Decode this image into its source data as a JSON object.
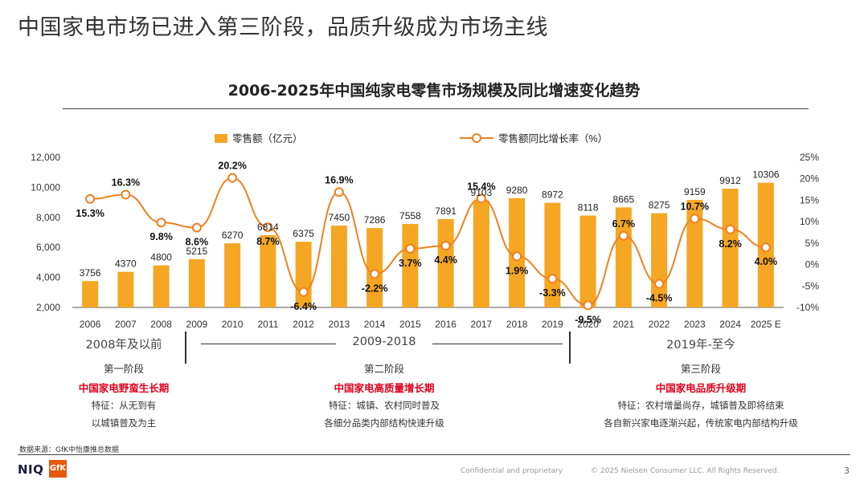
{
  "page": {
    "title": "中国家电市场已进入第三阶段，品质升级成为市场主线",
    "source": "数据来源：GfK中怡康推总数据",
    "footer_confidential": "Confidential and proprietary",
    "footer_copyright": "© 2025 Nielsen Consumer LLC. All Rights Reserved.",
    "page_number": "3",
    "logo_niq": "NIQ",
    "logo_gfk": "GfK"
  },
  "colors": {
    "bar": "#f5a623",
    "line": "#f08020",
    "theme_red": "#e0001b"
  },
  "stages": [
    {
      "period": "2008年及以前",
      "name": "第一阶段",
      "theme": "中国家电野蛮生长期",
      "feature1": "特征：从无到有",
      "feature2": "以城镇普及为主"
    },
    {
      "period": "2009-2018",
      "name": "第二阶段",
      "theme": "中国家电高质量增长期",
      "feature1": "特征：城镇、农村同时普及",
      "feature2": "各细分品类内部结构快速升级"
    },
    {
      "period": "2019年-至今",
      "name": "第三阶段",
      "theme": "中国家电品质升级期",
      "feature1": "特征：农村增量尚存，城镇普及即将结束",
      "feature2": "各自新兴家电逐渐兴起，传统家电内部结构升级"
    }
  ],
  "chart_data": {
    "type": "bar",
    "title": "2006-2025年中国纯家电零售市场规模及同比增速变化趋势",
    "categories": [
      "2006",
      "2007",
      "2008",
      "2009",
      "2010",
      "2011",
      "2012",
      "2013",
      "2014",
      "2015",
      "2016",
      "2017",
      "2018",
      "2019",
      "2020",
      "2021",
      "2022",
      "2023",
      "2024",
      "2025 E"
    ],
    "series": [
      {
        "name": "零售额（亿元）",
        "type": "bar",
        "axis": "left",
        "values": [
          3756,
          4370,
          4800,
          5215,
          6270,
          6814,
          6375,
          7450,
          7286,
          7558,
          7891,
          9103,
          9280,
          8972,
          8118,
          8665,
          8275,
          9159,
          9912,
          10306
        ]
      },
      {
        "name": "零售额同比增长率（%）",
        "type": "line",
        "axis": "right",
        "values": [
          15.3,
          16.3,
          9.8,
          8.6,
          20.2,
          8.7,
          -6.4,
          16.9,
          -2.2,
          3.7,
          4.4,
          15.4,
          1.9,
          -3.3,
          -9.5,
          6.7,
          -4.5,
          10.7,
          8.2,
          4.0
        ],
        "labels": [
          "15.3%",
          "16.3%",
          "9.8%",
          "8.6%",
          "20.2%",
          "8.7%",
          "-6.4%",
          "16.9%",
          "-2.2%",
          "3.7%",
          "4.4%",
          "15.4%",
          "1.9%",
          "-3.3%",
          "-9.5%",
          "6.7%",
          "-4.5%",
          "10.7%",
          "8.2%",
          "4.0%"
        ]
      }
    ],
    "y_left": {
      "min": 2000,
      "max": 12000,
      "ticks": [
        "2,000",
        "4,000",
        "6,000",
        "8,000",
        "10,000",
        "12,000"
      ]
    },
    "y_right": {
      "min": -10,
      "max": 25,
      "ticks": [
        "-10%",
        "-5%",
        "0%",
        "5%",
        "10%",
        "15%",
        "20%",
        "25%"
      ]
    },
    "legend": "top-center",
    "grid": false
  }
}
